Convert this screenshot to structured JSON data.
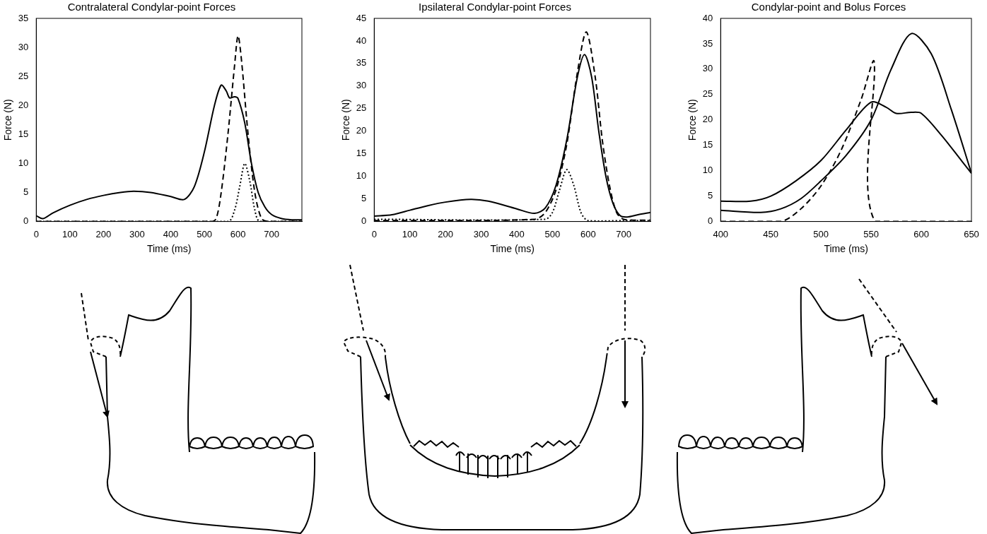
{
  "chart_data": [
    {
      "type": "line",
      "title": "Contralateral Condylar-point Forces",
      "x_label": "Time (ms)",
      "y_label": "Force (N)",
      "xlim": [
        0,
        790
      ],
      "xticks": [
        0,
        100,
        200,
        300,
        400,
        500,
        600,
        700
      ],
      "ylim": [
        0,
        35
      ],
      "yticks": [
        0,
        5,
        10,
        15,
        20,
        25,
        30,
        35
      ],
      "grid": false,
      "series": [
        {
          "color": "#000000",
          "line_style": "solid",
          "x": [
            0,
            20,
            50,
            100,
            150,
            200,
            250,
            290,
            340,
            400,
            440,
            470,
            500,
            530,
            550,
            565,
            575,
            590,
            600,
            620,
            640,
            660,
            680,
            700,
            730,
            760,
            790
          ],
          "values": [
            1.0,
            0.5,
            1.5,
            2.8,
            3.8,
            4.5,
            5.0,
            5.2,
            5.0,
            4.3,
            3.8,
            6.0,
            12.0,
            20.0,
            23.5,
            22.5,
            21.3,
            21.5,
            21.2,
            17.0,
            10.0,
            5.0,
            2.5,
            1.2,
            0.5,
            0.3,
            0.3
          ]
        },
        {
          "color": "#000000",
          "line_style": "dashed",
          "x": [
            0,
            520,
            535,
            550,
            570,
            590,
            600,
            610,
            630,
            650,
            670,
            690,
            790
          ],
          "values": [
            0,
            0,
            0.5,
            5.0,
            15.0,
            27.0,
            32.0,
            28.0,
            15.0,
            5.0,
            0.5,
            0,
            0
          ]
        },
        {
          "color": "#000000",
          "line_style": "dotted",
          "x": [
            0,
            570,
            590,
            605,
            620,
            635,
            650,
            665,
            790
          ],
          "values": [
            0,
            0,
            2.0,
            6.0,
            10.0,
            7.0,
            2.0,
            0,
            0
          ]
        }
      ]
    },
    {
      "type": "line",
      "title": "Ipsilateral Condylar-point Forces",
      "x_label": "Time (ms)",
      "y_label": "Force (N)",
      "xlim": [
        0,
        775
      ],
      "xticks": [
        0,
        100,
        200,
        300,
        400,
        500,
        600,
        700
      ],
      "ylim": [
        0,
        45
      ],
      "yticks": [
        0,
        5,
        10,
        15,
        20,
        25,
        30,
        35,
        40,
        45
      ],
      "grid": false,
      "series": [
        {
          "color": "#000000",
          "line_style": "solid",
          "x": [
            0,
            50,
            100,
            150,
            200,
            270,
            320,
            400,
            450,
            480,
            510,
            540,
            570,
            590,
            610,
            630,
            650,
            670,
            690,
            710,
            740,
            775
          ],
          "values": [
            1.2,
            1.5,
            2.5,
            3.5,
            4.3,
            4.9,
            4.5,
            2.8,
            1.8,
            3.0,
            8.0,
            18.0,
            32.0,
            37.0,
            32.0,
            20.0,
            10.0,
            4.0,
            1.3,
            1.0,
            1.5,
            2.0
          ]
        },
        {
          "color": "#000000",
          "line_style": "dashed",
          "x": [
            0,
            450,
            480,
            510,
            540,
            570,
            595,
            620,
            640,
            660,
            680,
            700,
            775
          ],
          "values": [
            0.2,
            0.5,
            2.0,
            7.0,
            17.0,
            33.0,
            42.0,
            32.0,
            18.0,
            8.0,
            2.0,
            0.5,
            0.3
          ]
        },
        {
          "color": "#000000",
          "line_style": "dotted",
          "x": [
            0,
            480,
            500,
            520,
            540,
            560,
            580,
            600,
            700,
            775
          ],
          "values": [
            0.5,
            0.5,
            2.0,
            7.0,
            11.5,
            8.0,
            2.0,
            0.2,
            0.2,
            0.2
          ]
        }
      ]
    },
    {
      "type": "line",
      "title": "Condylar-point and Bolus Forces",
      "x_label": "Time (ms)",
      "y_label": "Force (N)",
      "xlim": [
        400,
        650
      ],
      "xticks": [
        400,
        450,
        500,
        550,
        600,
        650
      ],
      "ylim": [
        0,
        40
      ],
      "yticks": [
        0,
        5,
        10,
        15,
        20,
        25,
        30,
        35,
        40
      ],
      "grid": false,
      "series": [
        {
          "color": "#000000",
          "line_style": "solid",
          "x": [
            400,
            430,
            450,
            475,
            500,
            525,
            550,
            565,
            575,
            590,
            600,
            620,
            640,
            650
          ],
          "values": [
            4.0,
            4.0,
            5.0,
            8.0,
            12.0,
            18.0,
            23.5,
            22.5,
            21.3,
            21.5,
            21.3,
            17.0,
            12.0,
            9.5
          ]
        },
        {
          "color": "#000000",
          "line_style": "solid",
          "x": [
            400,
            440,
            460,
            480,
            500,
            525,
            550,
            570,
            590,
            610,
            630,
            650
          ],
          "values": [
            2.2,
            1.8,
            2.5,
            4.5,
            8.0,
            13.0,
            20.0,
            30.0,
            37.0,
            33.0,
            22.0,
            9.5
          ]
        },
        {
          "color": "#000000",
          "line_style": "dashed",
          "x": [
            400,
            460,
            480,
            500,
            520,
            540,
            553,
            554,
            650
          ],
          "values": [
            0,
            0,
            2.5,
            7.0,
            14.0,
            24.0,
            31.5,
            0,
            0
          ]
        }
      ]
    }
  ]
}
